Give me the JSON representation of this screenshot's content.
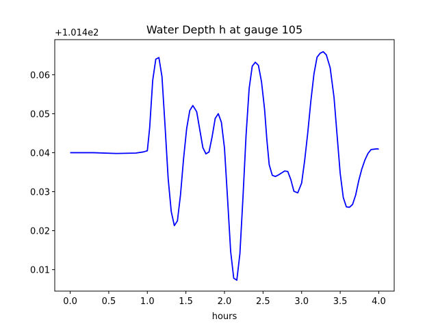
{
  "chart_data": {
    "type": "line",
    "title": "Water Depth h at gauge 105",
    "xlabel": "hours",
    "ylabel": "",
    "y_offset_label": "+1.014e2",
    "xlim": [
      -0.2,
      4.2
    ],
    "ylim": [
      0.0045,
      0.069
    ],
    "x_ticks": [
      0.0,
      0.5,
      1.0,
      1.5,
      2.0,
      2.5,
      3.0,
      3.5,
      4.0
    ],
    "x_tick_labels": [
      "0.0",
      "0.5",
      "1.0",
      "1.5",
      "2.0",
      "2.5",
      "3.0",
      "3.5",
      "4.0"
    ],
    "y_ticks": [
      0.01,
      0.02,
      0.03,
      0.04,
      0.05,
      0.06
    ],
    "y_tick_labels": [
      "0.01",
      "0.02",
      "0.03",
      "0.04",
      "0.05",
      "0.06"
    ],
    "grid": false,
    "color": "#0000ff",
    "series": [
      {
        "x": [
          0.0,
          0.3,
          0.6,
          0.85,
          0.95,
          1.0,
          1.03,
          1.07,
          1.11,
          1.15,
          1.19,
          1.23,
          1.27,
          1.31,
          1.35,
          1.39,
          1.43,
          1.47,
          1.51,
          1.55,
          1.59,
          1.64,
          1.68,
          1.72,
          1.76,
          1.8,
          1.84,
          1.88,
          1.92,
          1.96,
          2.0,
          2.04,
          2.08,
          2.12,
          2.16,
          2.2,
          2.24,
          2.28,
          2.32,
          2.36,
          2.4,
          2.44,
          2.48,
          2.52,
          2.55,
          2.58,
          2.62,
          2.66,
          2.7,
          2.74,
          2.78,
          2.82,
          2.86,
          2.9,
          2.95,
          3.0,
          3.04,
          3.08,
          3.12,
          3.16,
          3.2,
          3.24,
          3.28,
          3.32,
          3.37,
          3.42,
          3.46,
          3.5,
          3.54,
          3.58,
          3.62,
          3.66,
          3.7,
          3.74,
          3.78,
          3.82,
          3.86,
          3.9,
          3.94,
          3.98,
          4.0
        ],
        "y": [
          0.04,
          0.04,
          0.0398,
          0.0399,
          0.0402,
          0.0405,
          0.0463,
          0.0586,
          0.064,
          0.0644,
          0.0595,
          0.0468,
          0.0334,
          0.0249,
          0.0213,
          0.0225,
          0.0292,
          0.0385,
          0.0462,
          0.0508,
          0.0521,
          0.0505,
          0.0459,
          0.0413,
          0.0397,
          0.0402,
          0.0441,
          0.0488,
          0.05,
          0.0478,
          0.0412,
          0.0282,
          0.0147,
          0.0078,
          0.0073,
          0.0141,
          0.0286,
          0.0445,
          0.0565,
          0.0622,
          0.0632,
          0.0624,
          0.0582,
          0.0511,
          0.0432,
          0.0369,
          0.0342,
          0.0339,
          0.0343,
          0.0348,
          0.0353,
          0.0352,
          0.0331,
          0.0301,
          0.0297,
          0.0322,
          0.0381,
          0.0452,
          0.0533,
          0.0602,
          0.0645,
          0.0655,
          0.0659,
          0.0651,
          0.0618,
          0.0542,
          0.0444,
          0.0347,
          0.0285,
          0.0261,
          0.026,
          0.0267,
          0.0291,
          0.0328,
          0.0358,
          0.0381,
          0.0398,
          0.0408,
          0.0409,
          0.041,
          0.0409
        ]
      }
    ]
  }
}
